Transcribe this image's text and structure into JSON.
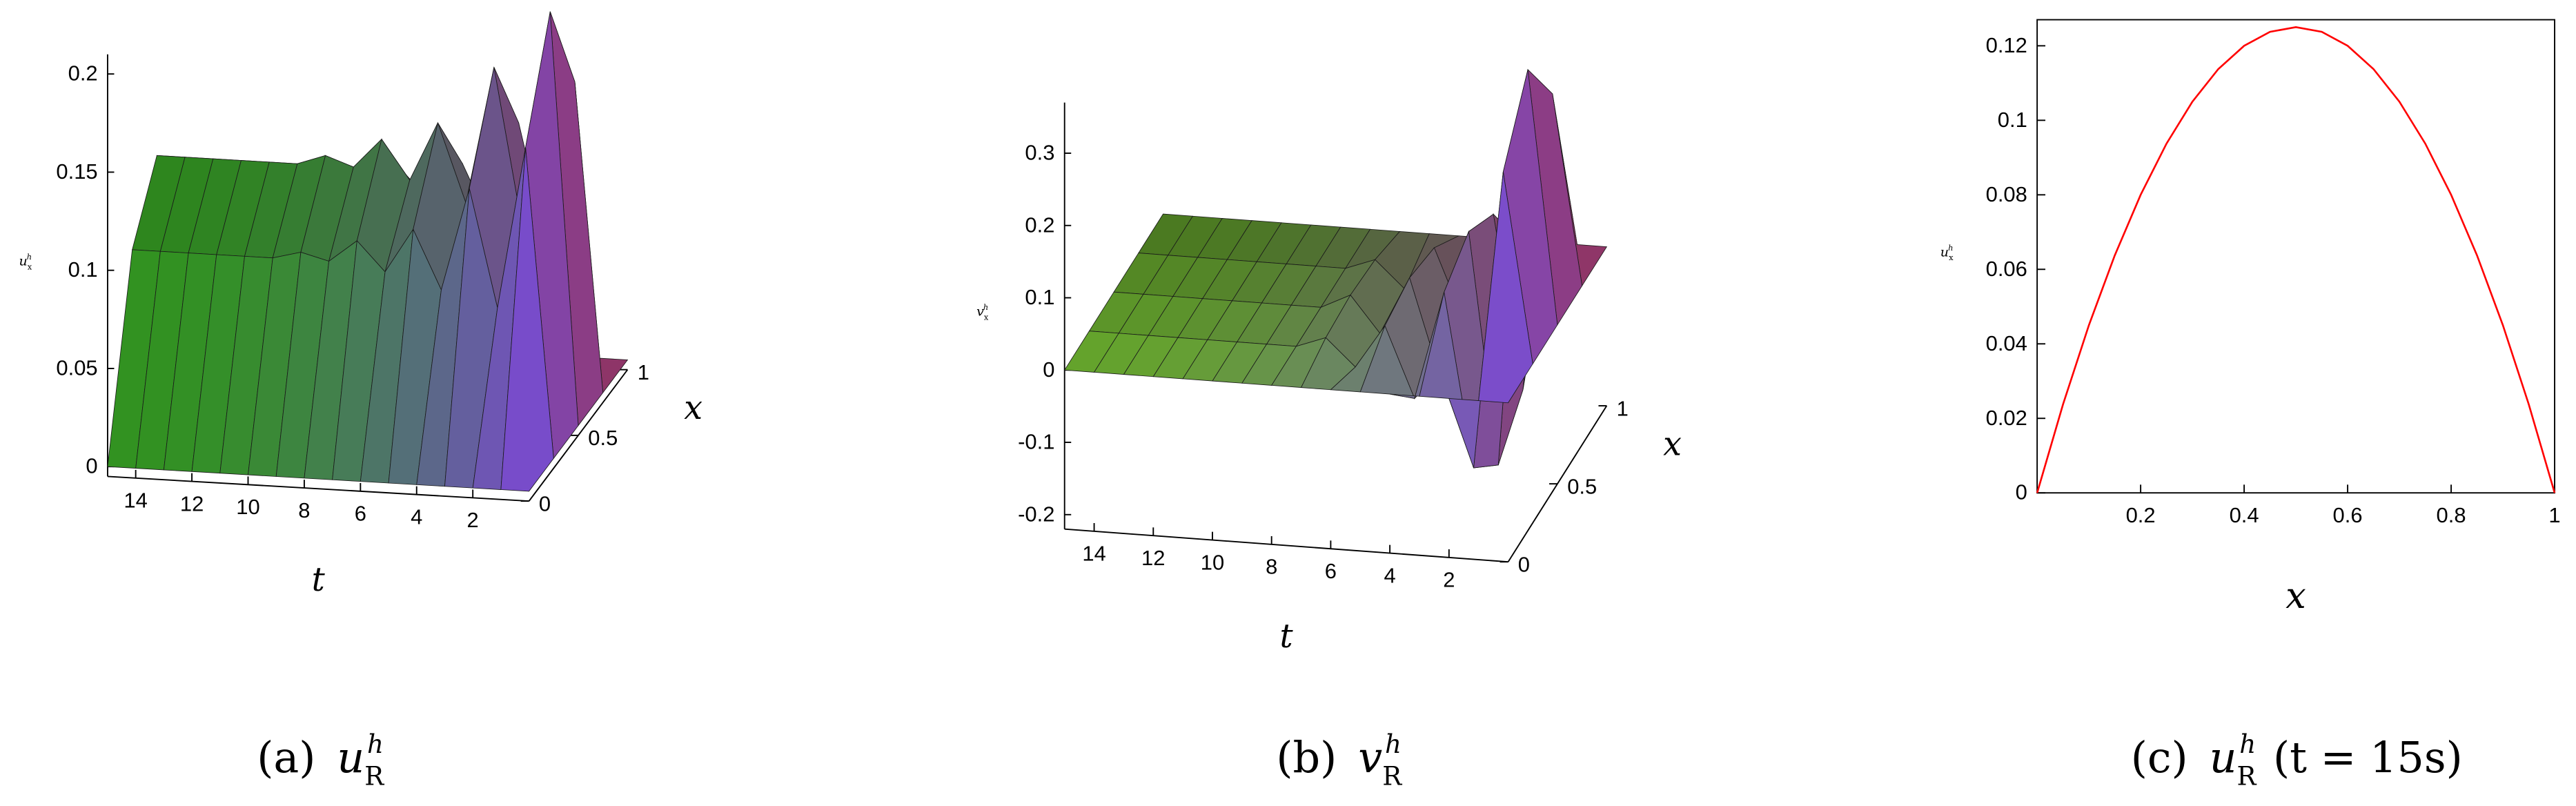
{
  "chart_data": [
    {
      "type": "surface",
      "caption": {
        "tag": "(a)",
        "text": "u",
        "sub": "R",
        "sup": "h"
      },
      "t": [
        0,
        1,
        2,
        3,
        4,
        5,
        6,
        7,
        8,
        9,
        10,
        11,
        12,
        13,
        14,
        15
      ],
      "x": [
        0,
        0.25,
        0.5,
        0.75,
        1
      ],
      "z": [
        [
          0,
          0,
          0,
          0,
          0,
          0,
          0,
          0,
          0,
          0,
          0,
          0,
          0,
          0,
          0,
          0
        ],
        [
          0,
          0.1575,
          0.075,
          0.135,
          0.0825,
          0.1125,
          0.09,
          0.105,
          0.09375,
          0.0975,
          0.09375,
          0.09375,
          0.09375,
          0.09375,
          0.09375,
          0.09375
        ],
        [
          0,
          0.21,
          0.1,
          0.18,
          0.11,
          0.15,
          0.12,
          0.14,
          0.125,
          0.13,
          0.125,
          0.125,
          0.125,
          0.125,
          0.125,
          0.125
        ],
        [
          0,
          0.1575,
          0.075,
          0.135,
          0.0825,
          0.1125,
          0.09,
          0.105,
          0.09375,
          0.0975,
          0.09375,
          0.09375,
          0.09375,
          0.09375,
          0.09375,
          0.09375
        ],
        [
          0,
          0,
          0,
          0,
          0,
          0,
          0,
          0,
          0,
          0,
          0,
          0,
          0,
          0,
          0,
          0
        ]
      ],
      "tlim": [
        0,
        15
      ],
      "tticks": [
        2,
        4,
        6,
        8,
        10,
        12,
        14
      ],
      "xlim": [
        0,
        1
      ],
      "xticks": [
        0,
        0.5,
        1
      ],
      "zlim": [
        -0.005,
        0.21
      ],
      "zticks": [
        0,
        0.05,
        0.1,
        0.15,
        0.2
      ],
      "tlabel": "t",
      "xlabel": "x",
      "zlabel": {
        "text": "u",
        "sub": "x",
        "sup": "h"
      },
      "colors": [
        "#2f8a1f",
        "#6b44d6",
        "#e0405a"
      ]
    },
    {
      "type": "surface",
      "caption": {
        "tag": "(b)",
        "text": "v",
        "sub": "R",
        "sup": "h"
      },
      "t": [
        0,
        1,
        2,
        3,
        4,
        5,
        6,
        7,
        8,
        9,
        10,
        11,
        12,
        13,
        14,
        15
      ],
      "x": [
        0,
        0.25,
        0.5,
        0.75,
        1
      ],
      "z": [
        [
          0,
          0,
          0,
          0,
          0,
          0,
          0,
          0,
          0,
          0,
          0,
          0,
          0,
          0,
          0,
          0
        ],
        [
          0,
          0.2625,
          -0.15,
          0.09,
          -0.06,
          0.0375,
          -0.0225,
          0.015,
          0,
          0,
          0,
          0,
          0,
          0,
          0,
          0
        ],
        [
          0,
          0.35,
          -0.2,
          0.12,
          -0.08,
          0.05,
          -0.03,
          0.02,
          0,
          0,
          0,
          0,
          0,
          0,
          0,
          0
        ],
        [
          0,
          0.2625,
          -0.15,
          0.09,
          -0.06,
          0.0375,
          -0.0225,
          0.015,
          0,
          0,
          0,
          0,
          0,
          0,
          0,
          0
        ],
        [
          0,
          0,
          0,
          0,
          0,
          0,
          0,
          0,
          0,
          0,
          0,
          0,
          0,
          0,
          0,
          0
        ]
      ],
      "tlim": [
        0,
        15
      ],
      "tticks": [
        2,
        4,
        6,
        8,
        10,
        12,
        14
      ],
      "xlim": [
        0,
        1
      ],
      "xticks": [
        0,
        0.5,
        1
      ],
      "zlim": [
        -0.22,
        0.37
      ],
      "zticks": [
        -0.2,
        -0.1,
        0,
        0.1,
        0.2,
        0.3
      ],
      "tlabel": "t",
      "xlabel": "x",
      "zlabel": {
        "text": "v",
        "sub": "x",
        "sup": "h"
      },
      "colors": [
        "#5f9a2a",
        "#6b44d6",
        "#e0405a"
      ]
    },
    {
      "type": "line",
      "caption": {
        "tag": "(c)",
        "text": "u",
        "sub": "R",
        "sup": "h",
        "note": "(t = 15s)"
      },
      "x": [
        0,
        0.05,
        0.1,
        0.15,
        0.2,
        0.25,
        0.3,
        0.35,
        0.4,
        0.45,
        0.5,
        0.55,
        0.6,
        0.65,
        0.7,
        0.75,
        0.8,
        0.85,
        0.9,
        0.95,
        1
      ],
      "series": [
        {
          "color": "#ff0000",
          "values": [
            0,
            0.02375,
            0.045,
            0.06375,
            0.08,
            0.09375,
            0.105,
            0.11375,
            0.12,
            0.12375,
            0.125,
            0.12375,
            0.12,
            0.11375,
            0.105,
            0.09375,
            0.08,
            0.06375,
            0.045,
            0.02375,
            0
          ]
        }
      ],
      "xlim": [
        0,
        1
      ],
      "xticks": [
        0.2,
        0.4,
        0.6,
        0.8,
        1
      ],
      "ylim": [
        0,
        0.127
      ],
      "yticks": [
        0,
        0.02,
        0.04,
        0.06,
        0.08,
        0.1,
        0.12
      ],
      "xlabel": "x",
      "ylabel": {
        "text": "u",
        "sub": "x",
        "sup": "h"
      }
    }
  ]
}
